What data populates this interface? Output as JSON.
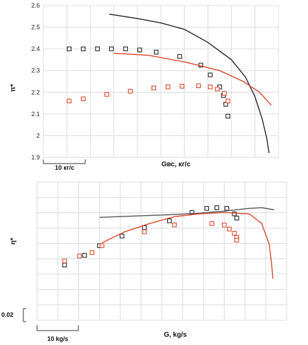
{
  "chart_data": [
    {
      "type": "scatter",
      "ylabel": "π*",
      "xlabel": "Gвс, кг/с",
      "scale_label": "10 кг/с",
      "yticks": [
        "1.9",
        "2",
        "2.1",
        "2.2",
        "2.3",
        "2.4",
        "2.5",
        "2.6"
      ],
      "ylim": [
        1.9,
        2.6
      ],
      "xlim": [
        0,
        1
      ],
      "grid": true,
      "series": [
        {
          "color": "#222222",
          "marker": "square",
          "points": [
            [
              0.11,
              2.4
            ],
            [
              0.17,
              2.4
            ],
            [
              0.23,
              2.4
            ],
            [
              0.29,
              2.4
            ],
            [
              0.35,
              2.4
            ],
            [
              0.41,
              2.395
            ],
            [
              0.48,
              2.385
            ],
            [
              0.58,
              2.365
            ],
            [
              0.67,
              2.325
            ],
            [
              0.71,
              2.28
            ],
            [
              0.75,
              2.225
            ],
            [
              0.766,
              2.185
            ],
            [
              0.776,
              2.145
            ],
            [
              0.785,
              2.09
            ]
          ]
        },
        {
          "color": "#d9472b",
          "marker": "square",
          "points": [
            [
              0.11,
              2.16
            ],
            [
              0.17,
              2.17
            ],
            [
              0.27,
              2.19
            ],
            [
              0.37,
              2.205
            ],
            [
              0.47,
              2.22
            ],
            [
              0.53,
              2.225
            ],
            [
              0.59,
              2.228
            ],
            [
              0.66,
              2.23
            ],
            [
              0.71,
              2.225
            ],
            [
              0.74,
              2.215
            ],
            [
              0.77,
              2.195
            ],
            [
              0.785,
              2.16
            ]
          ]
        },
        {
          "color": "#222222",
          "marker": "line",
          "points": [
            [
              0.28,
              2.56
            ],
            [
              0.4,
              2.54
            ],
            [
              0.5,
              2.52
            ],
            [
              0.6,
              2.49
            ],
            [
              0.7,
              2.43
            ],
            [
              0.8,
              2.35
            ],
            [
              0.86,
              2.27
            ],
            [
              0.9,
              2.18
            ],
            [
              0.93,
              2.08
            ],
            [
              0.95,
              1.99
            ],
            [
              0.96,
              1.92
            ]
          ]
        },
        {
          "color": "#d9472b",
          "marker": "line",
          "points": [
            [
              0.3,
              2.38
            ],
            [
              0.45,
              2.37
            ],
            [
              0.6,
              2.34
            ],
            [
              0.75,
              2.3
            ],
            [
              0.85,
              2.25
            ],
            [
              0.92,
              2.2
            ],
            [
              0.97,
              2.14
            ]
          ]
        }
      ]
    },
    {
      "type": "scatter",
      "ylabel": "η*",
      "xlabel": "G, kg/s",
      "scale_label": "10 kg/s",
      "ybar_label": "0.02",
      "xlim": [
        0,
        1
      ],
      "grid": true,
      "series": [
        {
          "color": "#222222",
          "marker": "square",
          "points": [
            [
              0.11,
              0.4
            ],
            [
              0.19,
              0.47
            ],
            [
              0.25,
              0.54
            ],
            [
              0.34,
              0.61
            ],
            [
              0.43,
              0.67
            ],
            [
              0.53,
              0.72
            ],
            [
              0.62,
              0.78
            ],
            [
              0.68,
              0.81
            ],
            [
              0.72,
              0.815
            ],
            [
              0.76,
              0.81
            ],
            [
              0.79,
              0.77
            ],
            [
              0.8,
              0.74
            ]
          ]
        },
        {
          "color": "#d9472b",
          "marker": "square",
          "points": [
            [
              0.11,
              0.43
            ],
            [
              0.17,
              0.465
            ],
            [
              0.22,
              0.49
            ],
            [
              0.26,
              0.54
            ],
            [
              0.43,
              0.64
            ],
            [
              0.55,
              0.69
            ],
            [
              0.7,
              0.7
            ],
            [
              0.75,
              0.69
            ],
            [
              0.77,
              0.66
            ],
            [
              0.79,
              0.63
            ],
            [
              0.8,
              0.6
            ],
            [
              0.8,
              0.58
            ]
          ]
        },
        {
          "color": "#555555",
          "marker": "line",
          "points": [
            [
              0.25,
              0.745
            ],
            [
              0.4,
              0.755
            ],
            [
              0.55,
              0.765
            ],
            [
              0.65,
              0.775
            ],
            [
              0.75,
              0.79
            ],
            [
              0.85,
              0.81
            ],
            [
              0.9,
              0.815
            ],
            [
              0.95,
              0.8
            ]
          ]
        },
        {
          "color": "#d9472b",
          "marker": "line",
          "points": [
            [
              0.26,
              0.56
            ],
            [
              0.35,
              0.64
            ],
            [
              0.45,
              0.7
            ],
            [
              0.55,
              0.75
            ],
            [
              0.65,
              0.77
            ],
            [
              0.75,
              0.78
            ],
            [
              0.85,
              0.77
            ],
            [
              0.9,
              0.7
            ],
            [
              0.93,
              0.55
            ],
            [
              0.94,
              0.4
            ],
            [
              0.945,
              0.3
            ]
          ]
        }
      ]
    }
  ]
}
